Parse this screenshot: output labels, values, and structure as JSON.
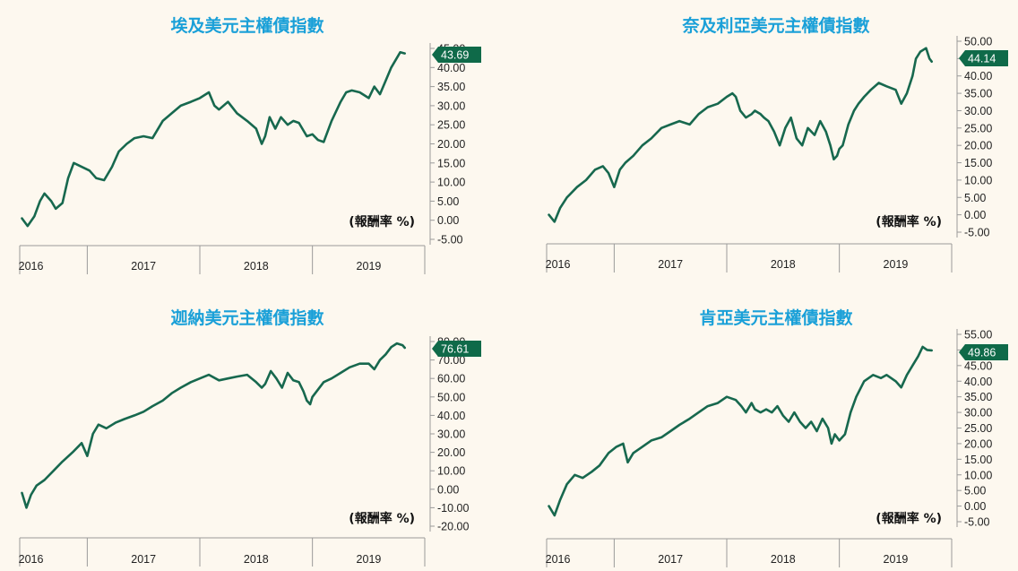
{
  "colors": {
    "title": "#1aa0d8",
    "line": "#17684e",
    "tag": "#0f6a49",
    "background": "#fdf8ef"
  },
  "chart_data": [
    {
      "type": "line",
      "title": "埃及美元主權債指數",
      "unit_label": "(報酬率 %)",
      "x_ticks": [
        "2016",
        "2017",
        "2018",
        "2019"
      ],
      "y_ticks": [
        "45.00",
        "40.00",
        "35.00",
        "30.00",
        "25.00",
        "20.00",
        "15.00",
        "10.00",
        "5.00",
        "0.00",
        "-5.00"
      ],
      "ylim": [
        -5,
        45
      ],
      "xlim": [
        2015.9,
        2019.45
      ],
      "last_value_label": "43.69",
      "last_value": 43.69,
      "series": [
        {
          "x": [
            2015.92,
            2015.97,
            2016.03,
            2016.08,
            2016.12,
            2016.18,
            2016.22,
            2016.28,
            2016.33,
            2016.38,
            2016.45,
            2016.52,
            2016.58,
            2016.65,
            2016.72,
            2016.78,
            2016.85,
            2016.92,
            2017.0,
            2017.08,
            2017.17,
            2017.25,
            2017.33,
            2017.42,
            2017.5,
            2017.58,
            2017.63,
            2017.67,
            2017.75,
            2017.83,
            2017.92,
            2018.0,
            2018.05,
            2018.08,
            2018.12,
            2018.17,
            2018.22,
            2018.28,
            2018.33,
            2018.38,
            2018.45,
            2018.5,
            2018.55,
            2018.6,
            2018.67,
            2018.75,
            2018.8,
            2018.85,
            2018.92,
            2019.0,
            2019.05,
            2019.1,
            2019.15,
            2019.2,
            2019.24,
            2019.28,
            2019.32
          ],
          "values": [
            0.5,
            -1.5,
            1,
            5,
            7,
            5,
            3,
            4.5,
            11,
            15,
            14,
            13,
            11,
            10.5,
            14,
            18,
            20,
            21.5,
            22,
            21.5,
            26,
            28,
            30,
            31,
            32,
            33.5,
            30,
            29,
            31,
            28,
            26,
            24,
            20,
            22,
            27,
            24,
            27,
            25,
            26,
            25.5,
            22,
            22.5,
            21,
            20.5,
            26,
            31,
            33.5,
            34,
            33.5,
            32,
            35,
            33,
            36.5,
            40,
            42,
            44,
            43.69
          ]
        }
      ]
    },
    {
      "type": "line",
      "title": "奈及利亞美元主權債指數",
      "unit_label": "(報酬率 %)",
      "x_ticks": [
        "2016",
        "2017",
        "2018",
        "2019"
      ],
      "y_ticks": [
        "50.00",
        "45.00",
        "40.00",
        "35.00",
        "30.00",
        "25.00",
        "20.00",
        "15.00",
        "10.00",
        "5.00",
        "0.00",
        "-5.00"
      ],
      "ylim": [
        -5,
        50
      ],
      "xlim": [
        2015.9,
        2019.45
      ],
      "last_value_label": "44.14",
      "last_value": 44.14,
      "series": [
        {
          "x": [
            2015.92,
            2015.97,
            2016.02,
            2016.08,
            2016.17,
            2016.25,
            2016.33,
            2016.4,
            2016.45,
            2016.5,
            2016.55,
            2016.6,
            2016.67,
            2016.75,
            2016.83,
            2016.92,
            2017.0,
            2017.08,
            2017.17,
            2017.25,
            2017.33,
            2017.42,
            2017.5,
            2017.55,
            2017.58,
            2017.62,
            2017.67,
            2017.72,
            2017.75,
            2017.8,
            2017.83,
            2017.87,
            2017.92,
            2017.97,
            2018.02,
            2018.07,
            2018.12,
            2018.17,
            2018.22,
            2018.28,
            2018.33,
            2018.38,
            2018.42,
            2018.45,
            2018.48,
            2018.5,
            2018.53,
            2018.58,
            2018.63,
            2018.67,
            2018.72,
            2018.78,
            2018.85,
            2018.92,
            2019.0,
            2019.05,
            2019.1,
            2019.15,
            2019.18,
            2019.22,
            2019.27,
            2019.3,
            2019.32
          ],
          "values": [
            0,
            -2,
            2,
            5,
            8,
            10,
            13,
            14,
            12,
            8,
            13,
            15,
            17,
            20,
            22,
            25,
            26,
            27,
            26,
            29,
            31,
            32,
            34,
            35,
            34,
            30,
            28,
            29,
            30,
            29,
            28,
            27,
            24,
            20,
            25,
            28,
            22,
            20,
            25,
            23,
            27,
            24,
            20,
            16,
            17,
            19,
            20,
            26,
            30,
            32,
            34,
            36,
            38,
            37,
            36,
            32,
            35,
            40,
            45,
            47,
            48,
            45,
            44.14
          ]
        }
      ]
    },
    {
      "type": "line",
      "title": "迦納美元主權債指數",
      "unit_label": "(報酬率 %)",
      "x_ticks": [
        "2016",
        "2017",
        "2018",
        "2019"
      ],
      "y_ticks": [
        "80.00",
        "70.00",
        "60.00",
        "50.00",
        "40.00",
        "30.00",
        "20.00",
        "10.00",
        "0.00",
        "-10.00",
        "-20.00"
      ],
      "ylim": [
        -20,
        80
      ],
      "xlim": [
        2015.9,
        2019.45
      ],
      "last_value_label": "76.61",
      "last_value": 76.61,
      "series": [
        {
          "x": [
            2015.92,
            2015.96,
            2016.0,
            2016.05,
            2016.12,
            2016.2,
            2016.28,
            2016.37,
            2016.45,
            2016.5,
            2016.55,
            2016.6,
            2016.67,
            2016.75,
            2016.83,
            2016.92,
            2017.0,
            2017.08,
            2017.17,
            2017.25,
            2017.33,
            2017.42,
            2017.5,
            2017.58,
            2017.67,
            2017.75,
            2017.83,
            2017.92,
            2018.0,
            2018.05,
            2018.08,
            2018.13,
            2018.18,
            2018.23,
            2018.28,
            2018.33,
            2018.38,
            2018.42,
            2018.45,
            2018.48,
            2018.5,
            2018.55,
            2018.6,
            2018.67,
            2018.75,
            2018.83,
            2018.92,
            2019.0,
            2019.05,
            2019.1,
            2019.15,
            2019.2,
            2019.25,
            2019.3,
            2019.32
          ],
          "values": [
            -2,
            -10,
            -3,
            2,
            5,
            10,
            15,
            20,
            25,
            18,
            30,
            35,
            33,
            36,
            38,
            40,
            42,
            45,
            48,
            52,
            55,
            58,
            60,
            62,
            59,
            60,
            61,
            62,
            58,
            55,
            57,
            64,
            60,
            55,
            63,
            59,
            58,
            53,
            48,
            46,
            50,
            54,
            58,
            60,
            63,
            66,
            68,
            68,
            65,
            70,
            73,
            77,
            79,
            78,
            76.61
          ]
        }
      ]
    },
    {
      "type": "line",
      "title": "肯亞美元主權債指數",
      "unit_label": "(報酬率 %)",
      "x_ticks": [
        "2016",
        "2017",
        "2018",
        "2019"
      ],
      "y_ticks": [
        "55.00",
        "50.00",
        "45.00",
        "40.00",
        "35.00",
        "30.00",
        "25.00",
        "20.00",
        "15.00",
        "10.00",
        "5.00",
        "0.00",
        "-5.00"
      ],
      "ylim": [
        -5,
        55
      ],
      "xlim": [
        2015.9,
        2019.45
      ],
      "last_value_label": "49.86",
      "last_value": 49.86,
      "series": [
        {
          "x": [
            2015.92,
            2015.97,
            2016.02,
            2016.08,
            2016.15,
            2016.22,
            2016.3,
            2016.37,
            2016.45,
            2016.52,
            2016.58,
            2016.62,
            2016.67,
            2016.75,
            2016.83,
            2016.92,
            2017.0,
            2017.08,
            2017.17,
            2017.25,
            2017.33,
            2017.42,
            2017.5,
            2017.58,
            2017.63,
            2017.67,
            2017.72,
            2017.75,
            2017.8,
            2017.85,
            2017.9,
            2017.95,
            2018.0,
            2018.05,
            2018.1,
            2018.15,
            2018.2,
            2018.25,
            2018.3,
            2018.35,
            2018.4,
            2018.43,
            2018.46,
            2018.5,
            2018.55,
            2018.6,
            2018.65,
            2018.72,
            2018.8,
            2018.87,
            2018.92,
            2019.0,
            2019.05,
            2019.1,
            2019.15,
            2019.2,
            2019.24,
            2019.28,
            2019.32
          ],
          "values": [
            0,
            -3,
            2,
            7,
            10,
            9,
            11,
            13,
            17,
            19,
            20,
            14,
            17,
            19,
            21,
            22,
            24,
            26,
            28,
            30,
            32,
            33,
            35,
            34,
            32,
            30,
            33,
            31,
            30,
            31,
            30,
            32,
            29,
            27,
            30,
            27,
            25,
            27,
            24,
            28,
            25,
            20,
            23,
            21,
            23,
            30,
            35,
            40,
            42,
            41,
            42,
            40,
            38,
            42,
            45,
            48,
            51,
            50,
            49.86
          ]
        }
      ]
    }
  ]
}
